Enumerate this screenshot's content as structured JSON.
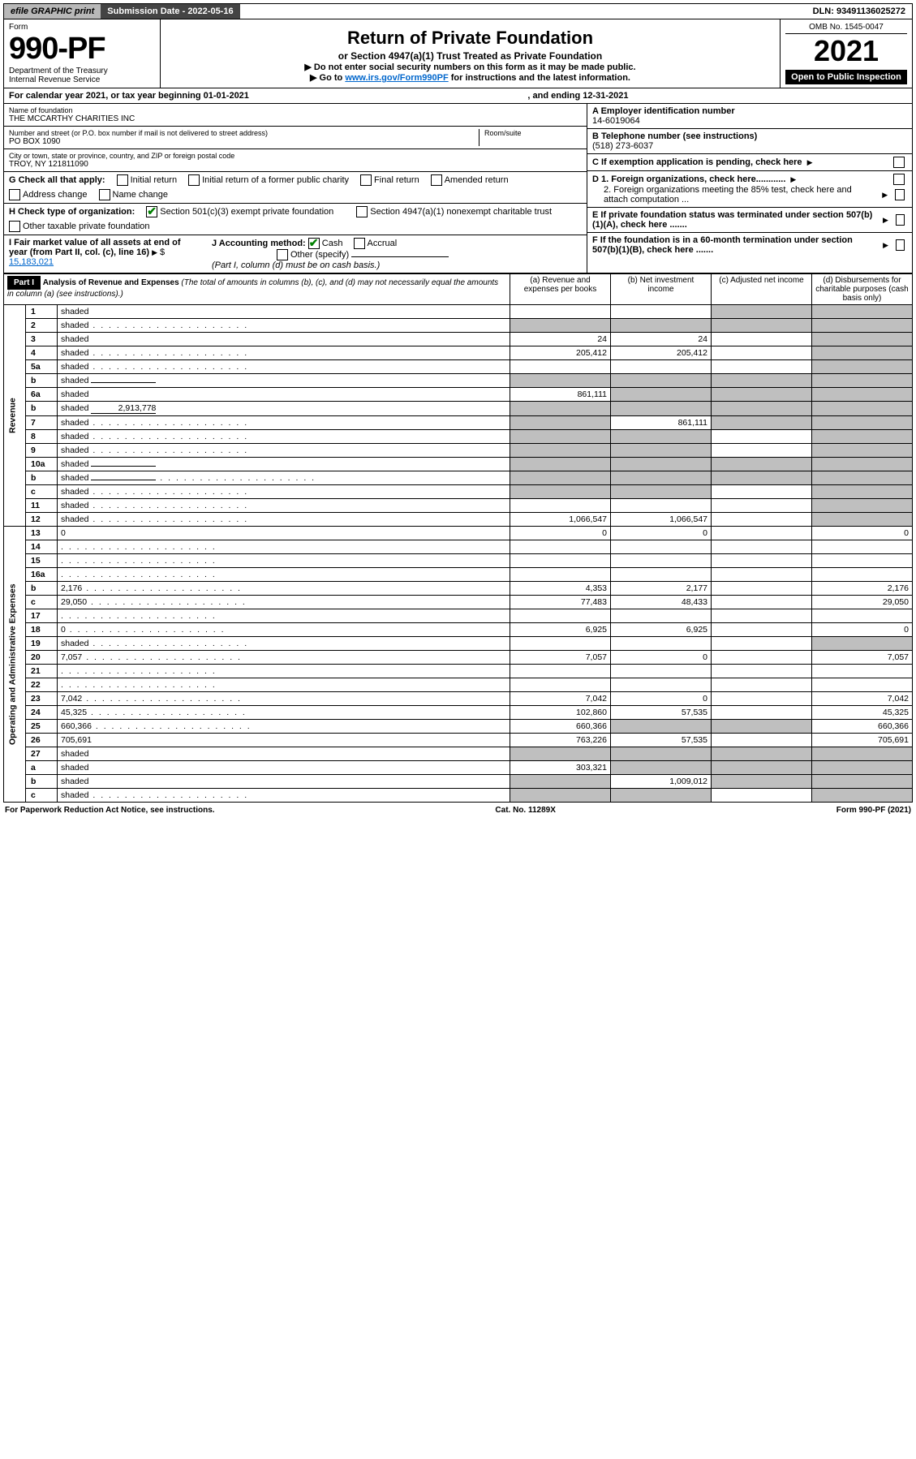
{
  "topbar": {
    "efile": "efile GRAPHIC print",
    "subdate_label": "Submission Date - 2022-05-16",
    "dln": "DLN: 93491136025272"
  },
  "header": {
    "form_label": "Form",
    "form_no": "990-PF",
    "dept": "Department of the Treasury",
    "irs": "Internal Revenue Service",
    "title": "Return of Private Foundation",
    "subtitle": "or Section 4947(a)(1) Trust Treated as Private Foundation",
    "note1": "▶ Do not enter social security numbers on this form as it may be made public.",
    "note2_pre": "▶ Go to ",
    "note2_link": "www.irs.gov/Form990PF",
    "note2_post": " for instructions and the latest information.",
    "omb": "OMB No. 1545-0047",
    "year": "2021",
    "open": "Open to Public Inspection"
  },
  "calline": {
    "pre": "For calendar year 2021, or tax year beginning 01-01-2021",
    "end": ", and ending 12-31-2021"
  },
  "info": {
    "name_label": "Name of foundation",
    "name": "THE MCCARTHY CHARITIES INC",
    "addr_label": "Number and street (or P.O. box number if mail is not delivered to street address)",
    "addr": "PO BOX 1090",
    "room_label": "Room/suite",
    "city_label": "City or town, state or province, country, and ZIP or foreign postal code",
    "city": "TROY, NY 121811090",
    "gcheck_label": "G Check all that apply:",
    "g_opts": [
      "Initial return",
      "Initial return of a former public charity",
      "Final return",
      "Amended return",
      "Address change",
      "Name change"
    ],
    "h_label": "H Check type of organization:",
    "h1": "Section 501(c)(3) exempt private foundation",
    "h2": "Section 4947(a)(1) nonexempt charitable trust",
    "h3": "Other taxable private foundation",
    "i_label": "I Fair market value of all assets at end of year (from Part II, col. (c), line 16)",
    "i_val": "15,183,021",
    "j_label": "J Accounting method:",
    "j1": "Cash",
    "j2": "Accrual",
    "j3": "Other (specify)",
    "j_note": "(Part I, column (d) must be on cash basis.)",
    "a_label": "A Employer identification number",
    "a_val": "14-6019064",
    "b_label": "B Telephone number (see instructions)",
    "b_val": "(518) 273-6037",
    "c_label": "C If exemption application is pending, check here",
    "d1": "D 1. Foreign organizations, check here............",
    "d2": "2. Foreign organizations meeting the 85% test, check here and attach computation ...",
    "e_label": "E If private foundation status was terminated under section 507(b)(1)(A), check here .......",
    "f_label": "F If the foundation is in a 60-month termination under section 507(b)(1)(B), check here ......."
  },
  "part1": {
    "label": "Part I",
    "title": "Analysis of Revenue and Expenses",
    "sub": "(The total of amounts in columns (b), (c), and (d) may not necessarily equal the amounts in column (a) (see instructions).)",
    "col_a": "(a) Revenue and expenses per books",
    "col_b": "(b) Net investment income",
    "col_c": "(c) Adjusted net income",
    "col_d": "(d) Disbursements for charitable purposes (cash basis only)",
    "side_rev": "Revenue",
    "side_exp": "Operating and Administrative Expenses"
  },
  "rows": [
    {
      "n": "1",
      "d": "shaded",
      "a": "",
      "b": "",
      "c": "shaded"
    },
    {
      "n": "2",
      "d": "shaded",
      "a": "shaded",
      "b": "shaded",
      "c": "shaded",
      "dots": true
    },
    {
      "n": "3",
      "d": "shaded",
      "a": "24",
      "b": "24",
      "c": ""
    },
    {
      "n": "4",
      "d": "shaded",
      "a": "205,412",
      "b": "205,412",
      "c": "",
      "dots": true
    },
    {
      "n": "5a",
      "d": "shaded",
      "a": "",
      "b": "",
      "c": "",
      "dots": true
    },
    {
      "n": "b",
      "d": "shaded",
      "a": "shaded",
      "b": "shaded",
      "c": "shaded",
      "inline": true
    },
    {
      "n": "6a",
      "d": "shaded",
      "a": "861,111",
      "b": "shaded",
      "c": "shaded"
    },
    {
      "n": "b",
      "d": "shaded",
      "a": "shaded",
      "b": "shaded",
      "c": "shaded",
      "inline": true,
      "inlineval": "2,913,778"
    },
    {
      "n": "7",
      "d": "shaded",
      "a": "shaded",
      "b": "861,111",
      "c": "shaded",
      "dots": true
    },
    {
      "n": "8",
      "d": "shaded",
      "a": "shaded",
      "b": "shaded",
      "c": "",
      "dots": true
    },
    {
      "n": "9",
      "d": "shaded",
      "a": "shaded",
      "b": "shaded",
      "c": "",
      "dots": true
    },
    {
      "n": "10a",
      "d": "shaded",
      "a": "shaded",
      "b": "shaded",
      "c": "shaded",
      "inline": true
    },
    {
      "n": "b",
      "d": "shaded",
      "a": "shaded",
      "b": "shaded",
      "c": "shaded",
      "dots": true,
      "inline": true
    },
    {
      "n": "c",
      "d": "shaded",
      "a": "shaded",
      "b": "shaded",
      "c": "",
      "dots": true
    },
    {
      "n": "11",
      "d": "shaded",
      "a": "",
      "b": "",
      "c": "",
      "dots": true
    },
    {
      "n": "12",
      "d": "shaded",
      "a": "1,066,547",
      "b": "1,066,547",
      "c": "",
      "dots": true
    }
  ],
  "erows": [
    {
      "n": "13",
      "d": "0",
      "a": "0",
      "b": "0",
      "c": ""
    },
    {
      "n": "14",
      "d": "",
      "a": "",
      "b": "",
      "c": "",
      "dots": true
    },
    {
      "n": "15",
      "d": "",
      "a": "",
      "b": "",
      "c": "",
      "dots": true
    },
    {
      "n": "16a",
      "d": "",
      "a": "",
      "b": "",
      "c": "",
      "dots": true
    },
    {
      "n": "b",
      "d": "2,176",
      "a": "4,353",
      "b": "2,177",
      "c": "",
      "dots": true
    },
    {
      "n": "c",
      "d": "29,050",
      "a": "77,483",
      "b": "48,433",
      "c": "",
      "dots": true
    },
    {
      "n": "17",
      "d": "",
      "a": "",
      "b": "",
      "c": "",
      "dots": true
    },
    {
      "n": "18",
      "d": "0",
      "a": "6,925",
      "b": "6,925",
      "c": "",
      "dots": true
    },
    {
      "n": "19",
      "d": "shaded",
      "a": "",
      "b": "",
      "c": "",
      "dots": true
    },
    {
      "n": "20",
      "d": "7,057",
      "a": "7,057",
      "b": "0",
      "c": "",
      "dots": true
    },
    {
      "n": "21",
      "d": "",
      "a": "",
      "b": "",
      "c": "",
      "dots": true
    },
    {
      "n": "22",
      "d": "",
      "a": "",
      "b": "",
      "c": "",
      "dots": true
    },
    {
      "n": "23",
      "d": "7,042",
      "a": "7,042",
      "b": "0",
      "c": "",
      "dots": true
    },
    {
      "n": "24",
      "d": "45,325",
      "a": "102,860",
      "b": "57,535",
      "c": "",
      "dots": true
    },
    {
      "n": "25",
      "d": "660,366",
      "a": "660,366",
      "b": "shaded",
      "c": "shaded",
      "dots": true
    },
    {
      "n": "26",
      "d": "705,691",
      "a": "763,226",
      "b": "57,535",
      "c": ""
    },
    {
      "n": "27",
      "d": "shaded",
      "a": "shaded",
      "b": "shaded",
      "c": "shaded"
    },
    {
      "n": "a",
      "d": "shaded",
      "a": "303,321",
      "b": "shaded",
      "c": "shaded"
    },
    {
      "n": "b",
      "d": "shaded",
      "a": "shaded",
      "b": "1,009,012",
      "c": "shaded"
    },
    {
      "n": "c",
      "d": "shaded",
      "a": "shaded",
      "b": "shaded",
      "c": "",
      "dots": true
    }
  ],
  "footer": {
    "left": "For Paperwork Reduction Act Notice, see instructions.",
    "cat": "Cat. No. 11289X",
    "form": "Form 990-PF (2021)"
  },
  "colors": {
    "shaded": "#bfbfbf",
    "link": "#0066cc",
    "topbar_gray": "#b8b8b8",
    "topbar_dark": "#444444"
  }
}
